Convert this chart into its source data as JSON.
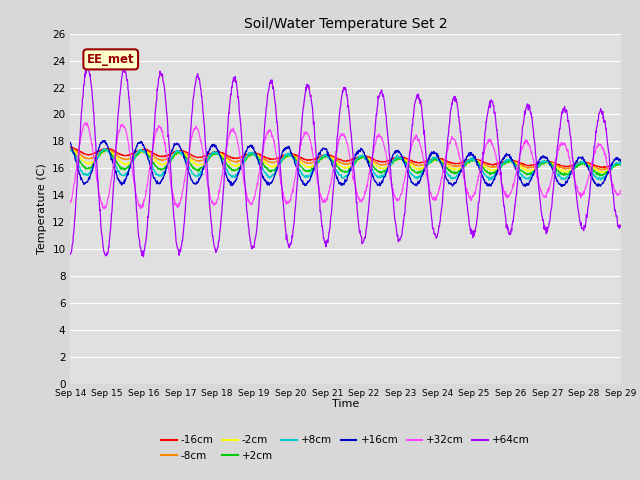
{
  "title": "Soil/Water Temperature Set 2",
  "xlabel": "Time",
  "ylabel": "Temperature (C)",
  "ylim": [
    0,
    26
  ],
  "yticks": [
    0,
    2,
    4,
    6,
    8,
    10,
    12,
    14,
    16,
    18,
    20,
    22,
    24,
    26
  ],
  "annotation_text": "EE_met",
  "annotation_bg": "#ffffcc",
  "annotation_border": "#990000",
  "series": [
    {
      "label": "-16cm",
      "color": "#ff0000"
    },
    {
      "label": "-8cm",
      "color": "#ff8800"
    },
    {
      "label": "-2cm",
      "color": "#ffff00"
    },
    {
      "label": "+2cm",
      "color": "#00cc00"
    },
    {
      "label": "+8cm",
      "color": "#00cccc"
    },
    {
      "label": "+16cm",
      "color": "#0000cc"
    },
    {
      "label": "+32cm",
      "color": "#ff44ff"
    },
    {
      "label": "+64cm",
      "color": "#aa00ff"
    }
  ],
  "x_tick_labels": [
    "Sep 14",
    "Sep 15",
    "Sep 16",
    "Sep 17",
    "Sep 18",
    "Sep 19",
    "Sep 20",
    "Sep 21",
    "Sep 22",
    "Sep 23",
    "Sep 24",
    "Sep 25",
    "Sep 26",
    "Sep 27",
    "Sep 28",
    "Sep 29"
  ],
  "n_points": 1500,
  "days": 15
}
